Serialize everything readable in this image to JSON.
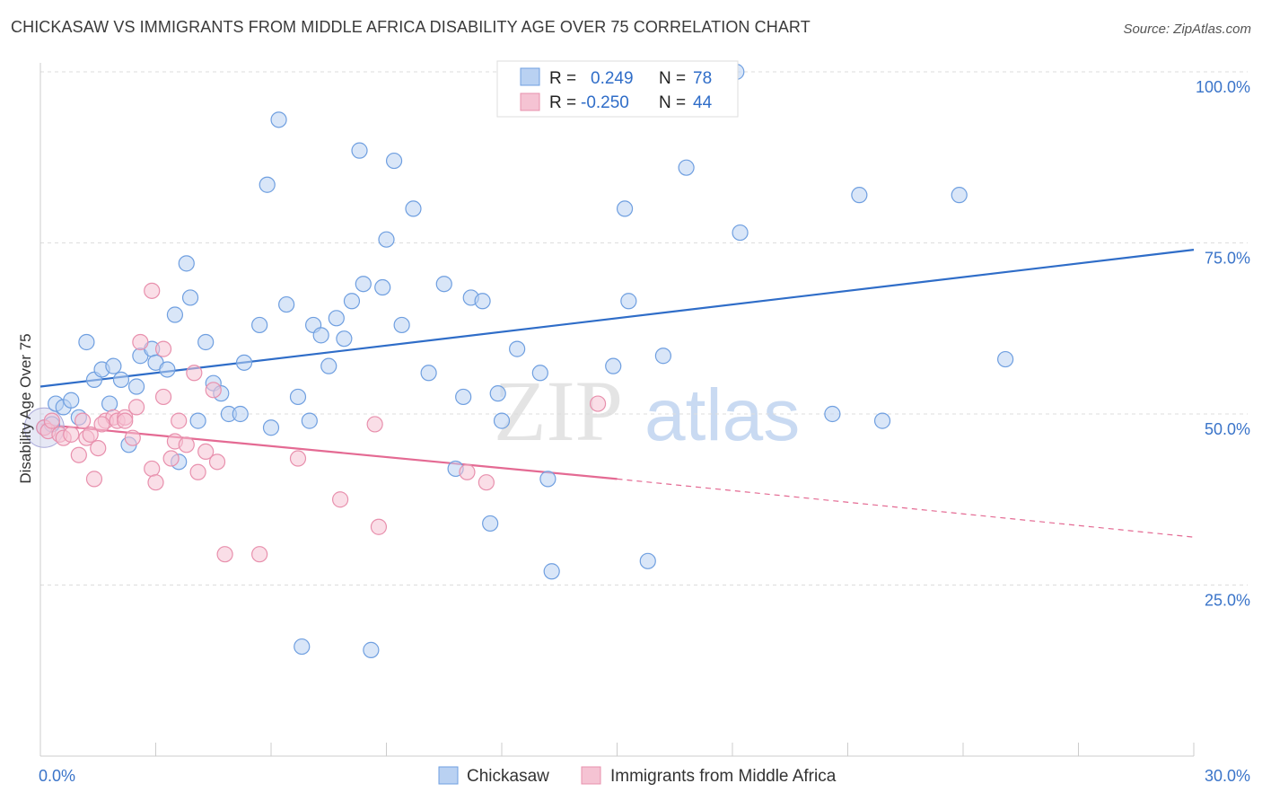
{
  "header": {
    "title": "CHICKASAW VS IMMIGRANTS FROM MIDDLE AFRICA DISABILITY AGE OVER 75 CORRELATION CHART",
    "source": "Source: ZipAtlas.com"
  },
  "watermark": {
    "part1": "ZIP",
    "part2": "atlas"
  },
  "colors": {
    "blue": "#6f9fe0",
    "blue_fill": "#b9d1f2",
    "blue_line": "#2f6dc8",
    "pink": "#e890ad",
    "pink_fill": "#f5c3d3",
    "pink_line": "#e46a93",
    "tick_text": "#3a74c9",
    "grid": "#dddddd"
  },
  "legend": {
    "rows": [
      {
        "r_label": "R =",
        "r_value": "0.249",
        "n_label": "N =",
        "n_value": "78"
      },
      {
        "r_label": "R =",
        "r_value": "-0.250",
        "n_label": "N =",
        "n_value": "44"
      }
    ]
  },
  "bottom_legend": [
    "Chickasaw",
    "Immigrants from Middle Africa"
  ],
  "chart_data": {
    "type": "scatter",
    "ylabel": "Disability Age Over 75",
    "x_ticks": [
      "0.0%",
      "30.0%"
    ],
    "y_ticks": [
      "100.0%",
      "75.0%",
      "50.0%",
      "25.0%"
    ],
    "xlim": [
      0,
      30
    ],
    "ylim": [
      0,
      105
    ],
    "grid": true,
    "legend_position": "top-center",
    "series": [
      {
        "name": "Chickasaw",
        "color": "#6f9fe0",
        "trend": {
          "x": [
            0,
            30
          ],
          "y": [
            54.0,
            74.0
          ]
        },
        "points": [
          [
            0.1,
            48.0
          ],
          [
            0.3,
            48.5
          ],
          [
            0.4,
            51.5
          ],
          [
            0.6,
            51.0
          ],
          [
            0.8,
            52.0
          ],
          [
            1.0,
            49.5
          ],
          [
            1.2,
            60.5
          ],
          [
            1.4,
            55.0
          ],
          [
            1.6,
            56.5
          ],
          [
            1.8,
            51.5
          ],
          [
            1.9,
            57.0
          ],
          [
            2.1,
            55.0
          ],
          [
            2.3,
            45.5
          ],
          [
            2.5,
            54.0
          ],
          [
            2.6,
            58.5
          ],
          [
            2.9,
            59.5
          ],
          [
            3.0,
            57.5
          ],
          [
            3.3,
            56.5
          ],
          [
            3.5,
            64.5
          ],
          [
            3.6,
            43.0
          ],
          [
            3.8,
            72.0
          ],
          [
            3.9,
            67.0
          ],
          [
            4.1,
            49.0
          ],
          [
            4.3,
            60.5
          ],
          [
            4.5,
            54.5
          ],
          [
            4.7,
            53.0
          ],
          [
            4.9,
            50.0
          ],
          [
            5.2,
            50.0
          ],
          [
            5.3,
            57.5
          ],
          [
            5.7,
            63.0
          ],
          [
            5.9,
            83.5
          ],
          [
            6.0,
            48.0
          ],
          [
            6.2,
            93.0
          ],
          [
            6.4,
            66.0
          ],
          [
            6.7,
            52.5
          ],
          [
            6.8,
            16.0
          ],
          [
            7.0,
            49.0
          ],
          [
            7.1,
            63.0
          ],
          [
            7.3,
            61.5
          ],
          [
            7.5,
            57.0
          ],
          [
            7.7,
            64.0
          ],
          [
            7.9,
            61.0
          ],
          [
            8.1,
            66.5
          ],
          [
            8.3,
            88.5
          ],
          [
            8.4,
            69.0
          ],
          [
            8.6,
            15.5
          ],
          [
            8.9,
            68.5
          ],
          [
            9.0,
            75.5
          ],
          [
            9.2,
            87.0
          ],
          [
            9.4,
            63.0
          ],
          [
            9.7,
            80.0
          ],
          [
            10.1,
            56.0
          ],
          [
            10.5,
            69.0
          ],
          [
            10.8,
            42.0
          ],
          [
            11.0,
            52.5
          ],
          [
            11.2,
            67.0
          ],
          [
            11.5,
            66.5
          ],
          [
            11.7,
            34.0
          ],
          [
            11.9,
            53.0
          ],
          [
            12.0,
            49.0
          ],
          [
            12.4,
            59.5
          ],
          [
            13.0,
            56.0
          ],
          [
            13.2,
            40.5
          ],
          [
            13.3,
            27.0
          ],
          [
            14.9,
            57.0
          ],
          [
            15.2,
            80.0
          ],
          [
            15.3,
            66.5
          ],
          [
            15.8,
            28.5
          ],
          [
            16.2,
            58.5
          ],
          [
            16.8,
            86.0
          ],
          [
            17.2,
            100.0
          ],
          [
            18.1,
            100.0
          ],
          [
            18.2,
            76.5
          ],
          [
            20.6,
            50.0
          ],
          [
            21.3,
            82.0
          ],
          [
            21.9,
            49.0
          ],
          [
            23.9,
            82.0
          ],
          [
            25.1,
            58.0
          ]
        ]
      },
      {
        "name": "Immigrants from Middle Africa",
        "color": "#e890ad",
        "trend": {
          "x": [
            0,
            15
          ],
          "y": [
            48.5,
            40.5
          ]
        },
        "trend_dashed": {
          "x": [
            15,
            30
          ],
          "y": [
            40.5,
            32.0
          ]
        },
        "points": [
          [
            0.1,
            48.0
          ],
          [
            0.2,
            47.5
          ],
          [
            0.3,
            49.0
          ],
          [
            0.5,
            47.0
          ],
          [
            0.6,
            46.5
          ],
          [
            0.8,
            47.0
          ],
          [
            1.0,
            44.0
          ],
          [
            1.1,
            49.0
          ],
          [
            1.2,
            46.5
          ],
          [
            1.3,
            47.0
          ],
          [
            1.4,
            40.5
          ],
          [
            1.5,
            45.0
          ],
          [
            1.7,
            49.0
          ],
          [
            1.9,
            49.5
          ],
          [
            2.0,
            49.0
          ],
          [
            2.2,
            49.5
          ],
          [
            2.4,
            46.5
          ],
          [
            2.5,
            51.0
          ],
          [
            2.6,
            60.5
          ],
          [
            2.9,
            68.0
          ],
          [
            2.9,
            42.0
          ],
          [
            3.0,
            40.0
          ],
          [
            3.2,
            52.5
          ],
          [
            3.2,
            59.5
          ],
          [
            3.4,
            43.5
          ],
          [
            3.5,
            46.0
          ],
          [
            3.6,
            49.0
          ],
          [
            3.8,
            45.5
          ],
          [
            4.0,
            56.0
          ],
          [
            4.1,
            41.5
          ],
          [
            4.3,
            44.5
          ],
          [
            4.5,
            53.5
          ],
          [
            4.6,
            43.0
          ],
          [
            4.8,
            29.5
          ],
          [
            5.7,
            29.5
          ],
          [
            6.7,
            43.5
          ],
          [
            7.8,
            37.5
          ],
          [
            8.7,
            48.5
          ],
          [
            8.8,
            33.5
          ],
          [
            11.1,
            41.5
          ],
          [
            11.6,
            40.0
          ],
          [
            14.5,
            51.5
          ],
          [
            2.2,
            49.0
          ],
          [
            1.6,
            48.5
          ]
        ]
      }
    ]
  }
}
